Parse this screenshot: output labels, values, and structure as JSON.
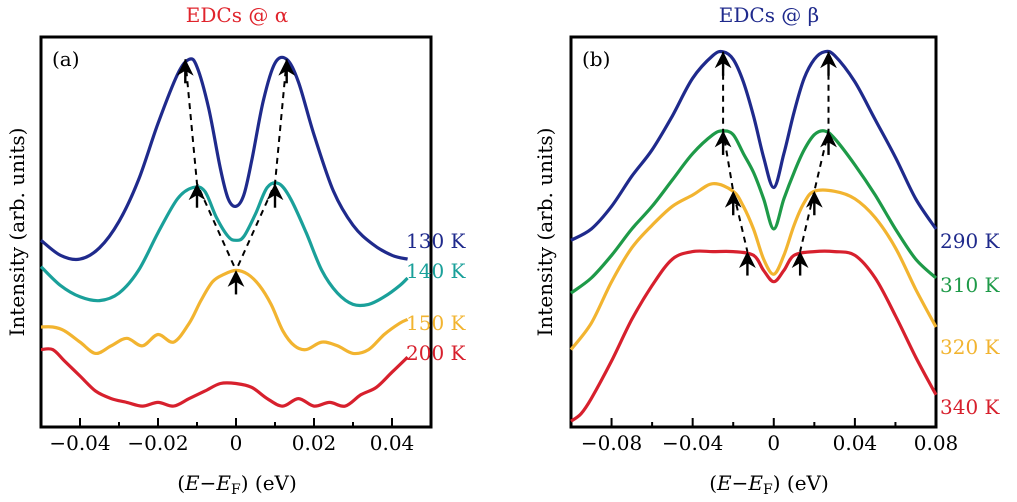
{
  "chart_data": [
    {
      "type": "line",
      "panel": "(a)",
      "title": "EDCs @ α",
      "xlabel": "(E−E_F) (eV)",
      "ylabel": "Intensity (arb. units)",
      "xlim": [
        -0.05,
        0.05
      ],
      "ylim": [
        0,
        1
      ],
      "xticks": [
        -0.04,
        -0.02,
        0,
        0.02,
        0.04
      ],
      "xtick_labels": [
        "−0.04",
        "−0.02",
        "0",
        "0.02",
        "0.04"
      ],
      "series": [
        {
          "name": "130 K",
          "color": "#1f2a8c",
          "x": [
            -0.05,
            -0.045,
            -0.04,
            -0.035,
            -0.03,
            -0.025,
            -0.02,
            -0.015,
            -0.012,
            -0.01,
            -0.007,
            -0.004,
            -0.002,
            0,
            0.002,
            0.004,
            0.007,
            0.01,
            0.013,
            0.016,
            0.02,
            0.025,
            0.03,
            0.035,
            0.04,
            0.044
          ],
          "y": [
            0.49,
            0.45,
            0.44,
            0.47,
            0.54,
            0.65,
            0.8,
            0.93,
            0.97,
            0.95,
            0.84,
            0.68,
            0.6,
            0.58,
            0.61,
            0.7,
            0.86,
            0.96,
            0.97,
            0.91,
            0.77,
            0.62,
            0.53,
            0.48,
            0.45,
            0.44
          ]
        },
        {
          "name": "140 K",
          "color": "#1aa09a",
          "x": [
            -0.05,
            -0.045,
            -0.04,
            -0.035,
            -0.03,
            -0.025,
            -0.02,
            -0.015,
            -0.011,
            -0.008,
            -0.005,
            -0.002,
            0,
            0.002,
            0.005,
            0.008,
            0.011,
            0.014,
            0.018,
            0.022,
            0.026,
            0.03,
            0.034,
            0.038,
            0.042,
            0.044
          ],
          "y": [
            0.42,
            0.37,
            0.34,
            0.33,
            0.35,
            0.41,
            0.51,
            0.6,
            0.63,
            0.62,
            0.55,
            0.5,
            0.49,
            0.5,
            0.56,
            0.63,
            0.64,
            0.6,
            0.51,
            0.41,
            0.35,
            0.32,
            0.32,
            0.34,
            0.37,
            0.39
          ]
        },
        {
          "name": "150 K",
          "color": "#f2b430",
          "x": [
            -0.05,
            -0.047,
            -0.044,
            -0.04,
            -0.036,
            -0.032,
            -0.028,
            -0.024,
            -0.02,
            -0.016,
            -0.012,
            -0.009,
            -0.006,
            -0.003,
            0,
            0.003,
            0.006,
            0.009,
            0.012,
            0.015,
            0.018,
            0.022,
            0.026,
            0.03,
            0.034,
            0.038,
            0.042,
            0.044
          ],
          "y": [
            0.26,
            0.26,
            0.25,
            0.22,
            0.19,
            0.21,
            0.23,
            0.21,
            0.24,
            0.22,
            0.27,
            0.33,
            0.38,
            0.4,
            0.41,
            0.4,
            0.37,
            0.32,
            0.25,
            0.21,
            0.2,
            0.22,
            0.21,
            0.19,
            0.2,
            0.24,
            0.27,
            0.28
          ]
        },
        {
          "name": "200 K",
          "color": "#d7202d",
          "x": [
            -0.05,
            -0.047,
            -0.044,
            -0.04,
            -0.036,
            -0.032,
            -0.028,
            -0.024,
            -0.02,
            -0.016,
            -0.012,
            -0.008,
            -0.004,
            0,
            0.004,
            0.008,
            0.012,
            0.016,
            0.02,
            0.024,
            0.028,
            0.032,
            0.036,
            0.04,
            0.044
          ],
          "y": [
            0.2,
            0.2,
            0.17,
            0.13,
            0.09,
            0.07,
            0.06,
            0.05,
            0.06,
            0.05,
            0.07,
            0.09,
            0.11,
            0.11,
            0.1,
            0.07,
            0.05,
            0.07,
            0.05,
            0.06,
            0.05,
            0.08,
            0.1,
            0.14,
            0.18
          ]
        }
      ],
      "series_labels": [
        "130 K",
        "140 K",
        "150 K",
        "200 K"
      ],
      "arrows": {
        "up_points": [
          [
            -0.013,
            0.97
          ],
          [
            0.013,
            0.97
          ],
          [
            -0.01,
            0.64
          ],
          [
            0.01,
            0.64
          ],
          [
            0,
            0.41
          ]
        ]
      }
    },
    {
      "type": "line",
      "panel": "(b)",
      "title": "EDCs @ β",
      "xlabel": "(E−E_F) (eV)",
      "ylabel": "Intensity (arb. units)",
      "xlim": [
        -0.1,
        0.08
      ],
      "ylim": [
        0,
        1
      ],
      "xticks": [
        -0.08,
        -0.04,
        0,
        0.04,
        0.08
      ],
      "xtick_labels": [
        "−0.08",
        "−0.04",
        "0",
        "0.04",
        "0.08"
      ],
      "series": [
        {
          "name": "290 K",
          "color": "#1f2a8c",
          "x": [
            -0.1,
            -0.09,
            -0.08,
            -0.07,
            -0.06,
            -0.05,
            -0.04,
            -0.03,
            -0.025,
            -0.02,
            -0.015,
            -0.01,
            -0.005,
            0,
            0.005,
            0.01,
            0.015,
            0.02,
            0.025,
            0.03,
            0.04,
            0.05,
            0.06,
            0.07,
            0.08
          ],
          "y": [
            0.49,
            0.52,
            0.58,
            0.66,
            0.73,
            0.82,
            0.92,
            0.98,
            0.99,
            0.97,
            0.91,
            0.82,
            0.71,
            0.63,
            0.72,
            0.83,
            0.92,
            0.97,
            0.99,
            0.98,
            0.91,
            0.81,
            0.71,
            0.6,
            0.52
          ]
        },
        {
          "name": "310 K",
          "color": "#1e9a48",
          "x": [
            -0.1,
            -0.09,
            -0.08,
            -0.07,
            -0.06,
            -0.05,
            -0.04,
            -0.03,
            -0.025,
            -0.02,
            -0.015,
            -0.01,
            -0.005,
            0,
            0.005,
            0.01,
            0.015,
            0.02,
            0.025,
            0.03,
            0.04,
            0.05,
            0.06,
            0.07,
            0.08
          ],
          "y": [
            0.35,
            0.39,
            0.45,
            0.52,
            0.58,
            0.65,
            0.72,
            0.77,
            0.78,
            0.77,
            0.72,
            0.67,
            0.6,
            0.52,
            0.6,
            0.67,
            0.73,
            0.77,
            0.78,
            0.76,
            0.69,
            0.61,
            0.52,
            0.44,
            0.39
          ]
        },
        {
          "name": "320 K",
          "color": "#f2b430",
          "x": [
            -0.1,
            -0.09,
            -0.08,
            -0.07,
            -0.06,
            -0.05,
            -0.04,
            -0.03,
            -0.02,
            -0.015,
            -0.01,
            -0.005,
            0,
            0.005,
            0.01,
            0.015,
            0.02,
            0.03,
            0.04,
            0.05,
            0.06,
            0.07,
            0.08
          ],
          "y": [
            0.2,
            0.27,
            0.38,
            0.47,
            0.53,
            0.58,
            0.61,
            0.64,
            0.62,
            0.58,
            0.52,
            0.44,
            0.4,
            0.45,
            0.53,
            0.59,
            0.62,
            0.62,
            0.6,
            0.55,
            0.47,
            0.36,
            0.26
          ]
        },
        {
          "name": "340 K",
          "color": "#d7202d",
          "x": [
            -0.1,
            -0.095,
            -0.09,
            -0.08,
            -0.07,
            -0.06,
            -0.05,
            -0.04,
            -0.03,
            -0.02,
            -0.01,
            -0.005,
            0,
            0.005,
            0.01,
            0.02,
            0.03,
            0.04,
            0.05,
            0.06,
            0.07,
            0.08
          ],
          "y": [
            0.01,
            0.03,
            0.07,
            0.17,
            0.28,
            0.37,
            0.44,
            0.46,
            0.46,
            0.46,
            0.45,
            0.41,
            0.38,
            0.41,
            0.45,
            0.46,
            0.46,
            0.45,
            0.39,
            0.29,
            0.18,
            0.08
          ]
        }
      ],
      "series_labels": [
        "290 K",
        "310 K",
        "320 K",
        "340 K"
      ],
      "arrows": {
        "up_points": [
          [
            -0.025,
            0.99
          ],
          [
            0.027,
            0.99
          ],
          [
            -0.025,
            0.78
          ],
          [
            0.027,
            0.78
          ],
          [
            -0.02,
            0.62
          ],
          [
            0.02,
            0.62
          ],
          [
            -0.013,
            0.46
          ],
          [
            0.013,
            0.46
          ]
        ]
      }
    }
  ]
}
